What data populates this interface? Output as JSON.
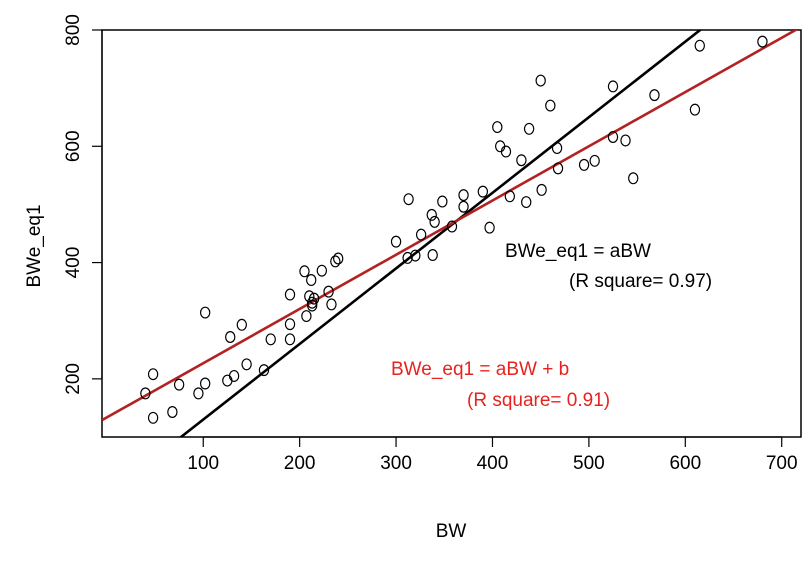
{
  "chart_data": {
    "type": "scatter",
    "xlabel": "BW",
    "ylabel": "BWe_eq1",
    "xlim": [
      -5,
      720
    ],
    "ylim": [
      100,
      800
    ],
    "xticks": [
      100,
      200,
      300,
      400,
      500,
      600,
      700
    ],
    "yticks": [
      200,
      400,
      600,
      800
    ],
    "grid": false,
    "point_style": "open-circle",
    "points": {
      "x": [
        40,
        48,
        48,
        68,
        75,
        95,
        102,
        102,
        125,
        128,
        132,
        140,
        145,
        163,
        170,
        190,
        190,
        190,
        205,
        207,
        210,
        212,
        213,
        213,
        215,
        223,
        230,
        233,
        237,
        240,
        300,
        312,
        313,
        320,
        326,
        337,
        338,
        340,
        348,
        358,
        370,
        370,
        390,
        397,
        405,
        408,
        414,
        418,
        430,
        435,
        438,
        450,
        451,
        460,
        467,
        468,
        495,
        506,
        525,
        525,
        538,
        546,
        568,
        610,
        615,
        680
      ],
      "y": [
        175,
        133,
        208,
        143,
        190,
        175,
        314,
        192,
        197,
        272,
        205,
        293,
        225,
        215,
        268,
        345,
        294,
        268,
        385,
        308,
        342,
        370,
        331,
        326,
        338,
        386,
        350,
        328,
        402,
        407,
        436,
        408,
        509,
        412,
        448,
        482,
        413,
        470,
        505,
        462,
        516,
        496,
        522,
        460,
        633,
        600,
        591,
        514,
        576,
        504,
        630,
        713,
        525,
        670,
        597,
        562,
        568,
        575,
        703,
        616,
        610,
        545,
        688,
        663,
        773,
        780
      ]
    },
    "series": [
      {
        "name": "BWe_eq1 = aBW",
        "kind": "fit-line",
        "slope": 1.3,
        "intercept": 0,
        "color": "#000000"
      },
      {
        "name": "BWe_eq1 = aBW + b",
        "kind": "fit-line",
        "slope": 0.9328,
        "intercept": 133.6,
        "color": "#B22222"
      }
    ],
    "annotations": [
      {
        "line1": "BWe_eq1 = aBW",
        "line2": "(R square= 0.97)",
        "color": "#000000"
      },
      {
        "line1": "BWe_eq1 = aBW + b",
        "line2": "(R square= 0.91)",
        "color": "#E8231F"
      }
    ]
  }
}
